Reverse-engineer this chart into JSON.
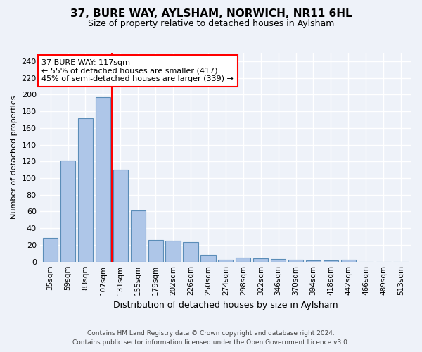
{
  "title": "37, BURE WAY, AYLSHAM, NORWICH, NR11 6HL",
  "subtitle": "Size of property relative to detached houses in Aylsham",
  "xlabel": "Distribution of detached houses by size in Aylsham",
  "ylabel": "Number of detached properties",
  "bin_labels": [
    "35sqm",
    "59sqm",
    "83sqm",
    "107sqm",
    "131sqm",
    "155sqm",
    "179sqm",
    "202sqm",
    "226sqm",
    "250sqm",
    "274sqm",
    "298sqm",
    "322sqm",
    "346sqm",
    "370sqm",
    "394sqm",
    "418sqm",
    "442sqm",
    "466sqm",
    "489sqm",
    "513sqm"
  ],
  "bar_values": [
    28,
    121,
    172,
    197,
    110,
    61,
    26,
    25,
    23,
    8,
    2,
    5,
    4,
    3,
    2,
    1,
    1,
    2,
    0,
    0,
    0
  ],
  "bar_color": "#aec6e8",
  "bar_edge_color": "#5b8db8",
  "property_line_x": 3.5,
  "annotation_line1": "37 BURE WAY: 117sqm",
  "annotation_line2": "← 55% of detached houses are smaller (417)",
  "annotation_line3": "45% of semi-detached houses are larger (339) →",
  "annotation_box_color": "white",
  "annotation_box_edge_color": "red",
  "vline_color": "red",
  "ylim": [
    0,
    250
  ],
  "yticks": [
    0,
    20,
    40,
    60,
    80,
    100,
    120,
    140,
    160,
    180,
    200,
    220,
    240
  ],
  "footer_line1": "Contains HM Land Registry data © Crown copyright and database right 2024.",
  "footer_line2": "Contains public sector information licensed under the Open Government Licence v3.0.",
  "bg_color": "#eef2f9",
  "grid_color": "white",
  "title_fontsize": 11,
  "subtitle_fontsize": 9,
  "ylabel_fontsize": 8,
  "xlabel_fontsize": 9,
  "tick_fontsize": 8,
  "xtick_fontsize": 7.5,
  "ann_fontsize": 8
}
